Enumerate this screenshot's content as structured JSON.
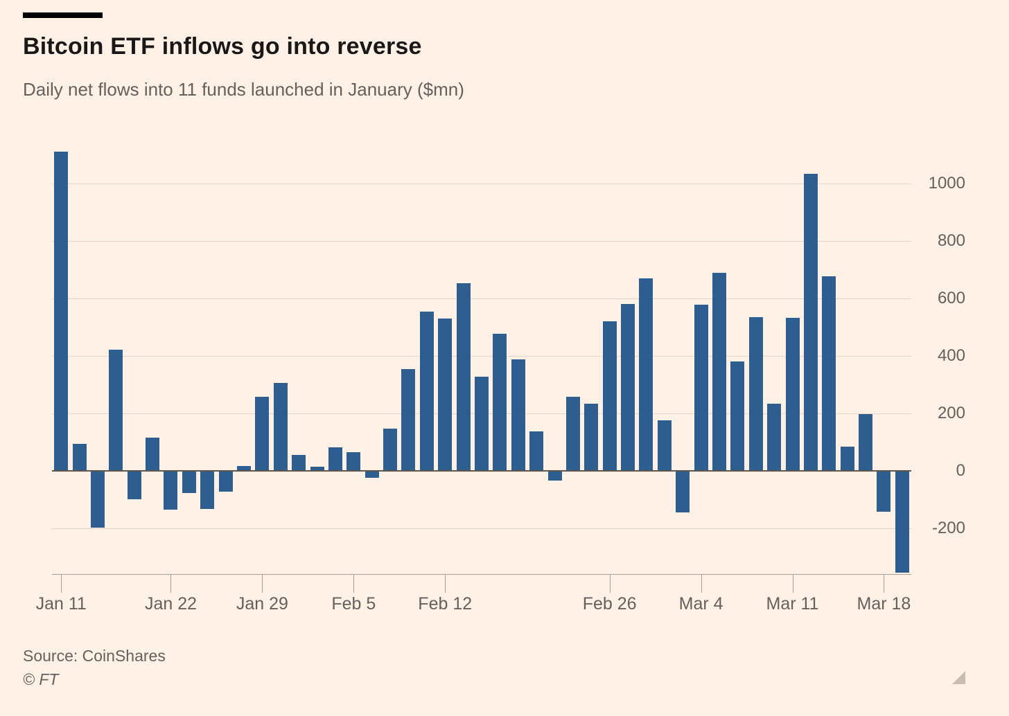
{
  "page": {
    "background_color": "#fff1e5"
  },
  "header": {
    "title": "Bitcoin ETF inflows go into reverse",
    "subtitle": "Daily net flows into 11 funds launched in January ($mn)"
  },
  "footer": {
    "source": "Source: CoinShares",
    "credit": "© FT"
  },
  "chart_data": {
    "type": "bar",
    "title": "Bitcoin ETF inflows go into reverse",
    "subtitle": "Daily net flows into 11 funds launched in January ($mn)",
    "ylabel": "Daily net flows ($mn)",
    "xlabel": "",
    "bar_color": "#2e5e90",
    "grid": true,
    "legend_position": "none",
    "y_axis_side": "right",
    "ylim": [
      -360,
      1120
    ],
    "y_ticks": [
      1000,
      800,
      600,
      400,
      200,
      0,
      -200
    ],
    "categories": [
      "Jan 11",
      "Jan 12",
      "Jan 16",
      "Jan 17",
      "Jan 18",
      "Jan 19",
      "Jan 22",
      "Jan 23",
      "Jan 24",
      "Jan 25",
      "Jan 26",
      "Jan 29",
      "Jan 30",
      "Jan 31",
      "Feb 1",
      "Feb 2",
      "Feb 5",
      "Feb 6",
      "Feb 7",
      "Feb 8",
      "Feb 9",
      "Feb 12",
      "Feb 13",
      "Feb 14",
      "Feb 15",
      "Feb 16",
      "Feb 20",
      "Feb 21",
      "Feb 22",
      "Feb 23",
      "Feb 26",
      "Feb 27",
      "Feb 28",
      "Feb 29",
      "Mar 1",
      "Mar 4",
      "Mar 5",
      "Mar 6",
      "Mar 7",
      "Mar 8",
      "Mar 11",
      "Mar 12",
      "Mar 13",
      "Mar 14",
      "Mar 15",
      "Mar 18",
      "Mar 19"
    ],
    "values": [
      1110,
      92,
      -198,
      422,
      -100,
      116,
      -135,
      -77,
      -133,
      -72,
      17,
      258,
      306,
      55,
      14,
      80,
      65,
      -24,
      145,
      354,
      554,
      530,
      653,
      328,
      477,
      388,
      137,
      -34,
      258,
      234,
      520,
      581,
      670,
      174,
      -145,
      578,
      689,
      381,
      535,
      234,
      532,
      1034,
      677,
      84,
      198,
      -142,
      -354
    ],
    "x_tick_labels": [
      "Jan 11",
      "Jan 22",
      "Jan 29",
      "Feb 5",
      "Feb 12",
      "Feb 26",
      "Mar 4",
      "Mar 11",
      "Mar 18"
    ],
    "x_tick_indices": [
      0,
      6,
      11,
      16,
      21,
      30,
      35,
      40,
      45
    ]
  }
}
